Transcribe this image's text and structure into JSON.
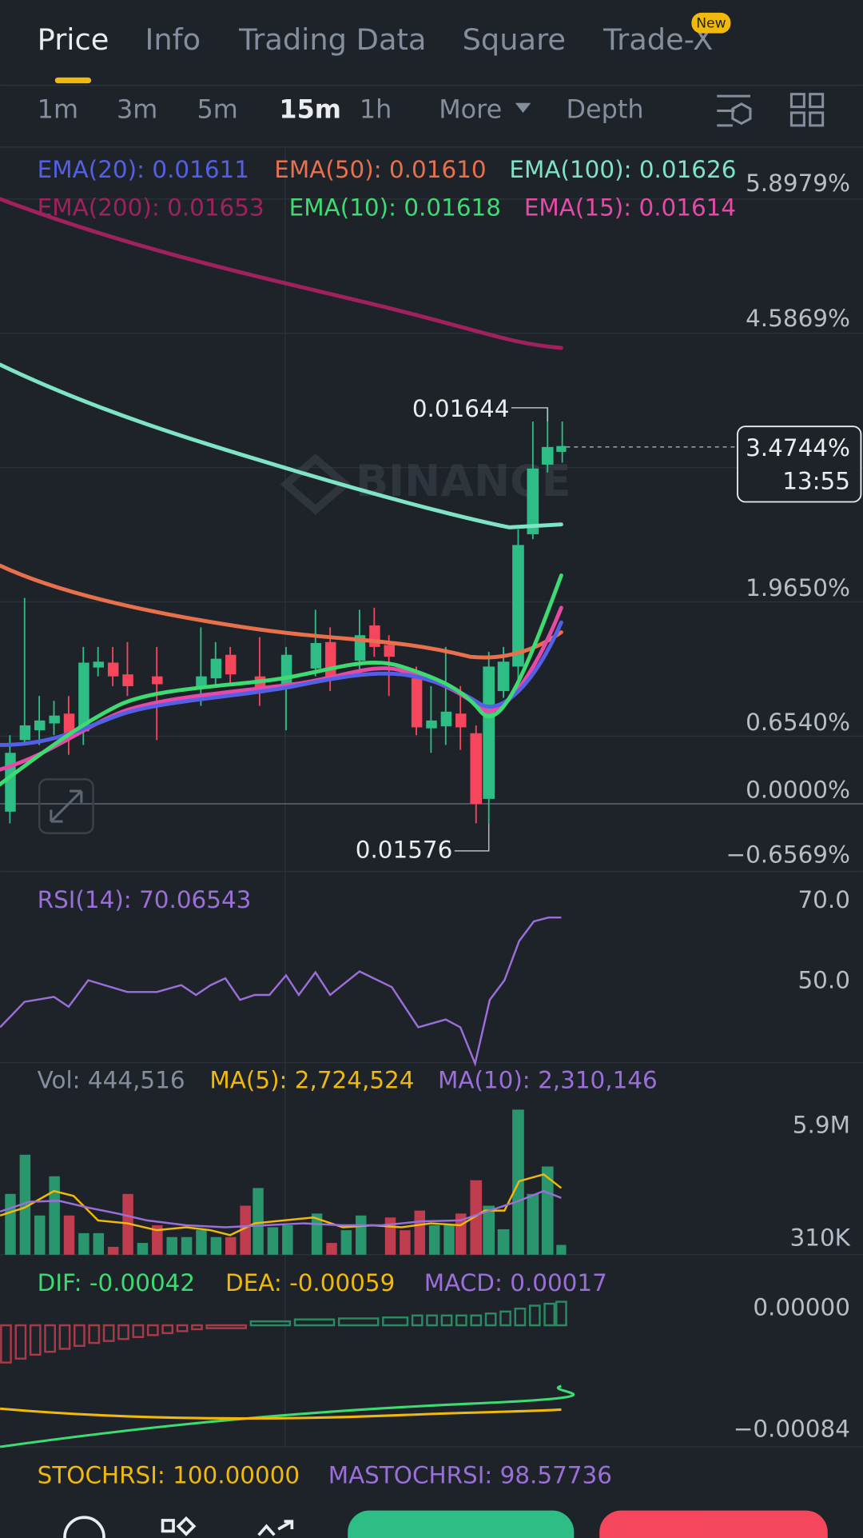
{
  "tabs": [
    "Price",
    "Info",
    "Trading Data",
    "Square",
    "Trade-X"
  ],
  "badge": "New",
  "intervals": [
    "1m",
    "3m",
    "5m",
    "15m",
    "1h",
    "More",
    "Depth"
  ],
  "ema_legend": [
    "EMA(20): 0.01611",
    "EMA(50): 0.01610",
    "EMA(100): 0.01626",
    "EMA(200): 0.01653",
    "EMA(10): 0.01618",
    "EMA(15): 0.01614"
  ],
  "price_axis": [
    "5.8979%",
    "4.5869%",
    "1.9650%",
    "0.6540%",
    "0.0000%",
    "−0.6569%"
  ],
  "current": {
    "change": "3.4744%",
    "countdown": "13:55"
  },
  "high_label": "0.01644",
  "low_label": "0.01576",
  "watermark": "BINANCE",
  "rsi": {
    "legend": "RSI(14): 70.06543",
    "axis": [
      "70.0",
      "50.0"
    ]
  },
  "volume": {
    "legend": [
      "Vol: 444,516",
      "MA(5): 2,724,524",
      "MA(10): 2,310,146"
    ],
    "axis": [
      "5.9M",
      "310K"
    ]
  },
  "macd": {
    "legend": [
      "DIF: -0.00042",
      "DEA: -0.00059",
      "MACD: 0.00017"
    ],
    "axis": [
      "0.00000",
      "−0.00084"
    ]
  },
  "stochrsi": {
    "legend": [
      "STOCHRSI: 100.00000",
      "MASTOCHRSI: 98.57736"
    ]
  }
}
